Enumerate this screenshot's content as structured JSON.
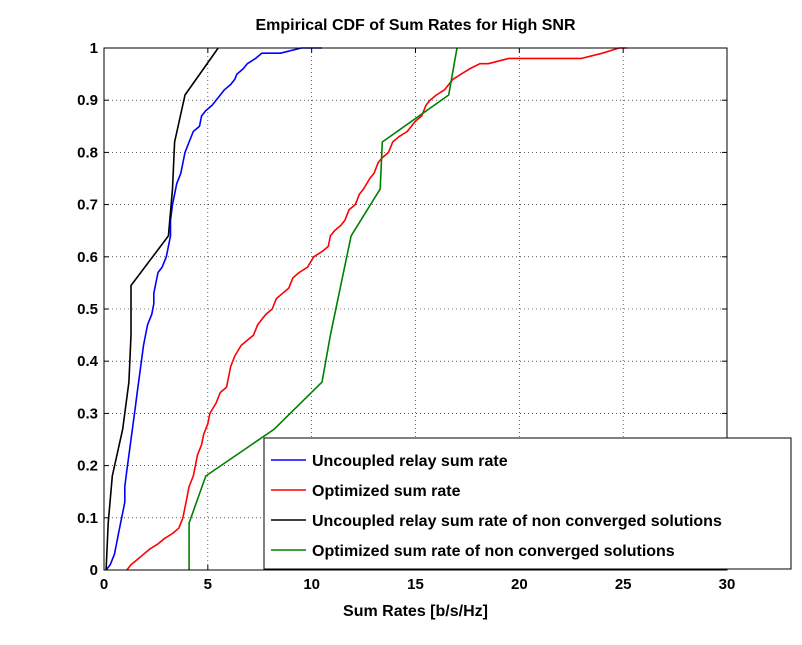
{
  "chart_data": {
    "type": "line",
    "title": "Empirical CDF of Sum Rates for High SNR",
    "xlabel": "Sum Rates [b/s/Hz]",
    "ylabel": "",
    "xlim": [
      0,
      30
    ],
    "ylim": [
      0,
      1
    ],
    "xticks": [
      0,
      5,
      10,
      15,
      20,
      25,
      30
    ],
    "xtick_labels": [
      "0",
      "5",
      "10",
      "15",
      "20",
      "25",
      "30"
    ],
    "yticks": [
      0,
      0.1,
      0.2,
      0.3,
      0.4,
      0.5,
      0.6,
      0.7,
      0.8,
      0.9,
      1
    ],
    "ytick_labels": [
      "0",
      "0.1",
      "0.2",
      "0.3",
      "0.4",
      "0.5",
      "0.6",
      "0.7",
      "0.8",
      "0.9",
      "1"
    ],
    "grid": true,
    "legend_position": "bottom-right",
    "series": [
      {
        "name": "Uncoupled relay sum rate",
        "color": "#0000ff",
        "points": [
          [
            0.1,
            0
          ],
          [
            0.3,
            0.01
          ],
          [
            0.4,
            0.02
          ],
          [
            0.5,
            0.03
          ],
          [
            0.6,
            0.05
          ],
          [
            0.7,
            0.07
          ],
          [
            0.8,
            0.09
          ],
          [
            0.9,
            0.11
          ],
          [
            1.0,
            0.13
          ],
          [
            1.0,
            0.16
          ],
          [
            1.1,
            0.19
          ],
          [
            1.2,
            0.22
          ],
          [
            1.3,
            0.25
          ],
          [
            1.4,
            0.28
          ],
          [
            1.5,
            0.31
          ],
          [
            1.6,
            0.34
          ],
          [
            1.7,
            0.37
          ],
          [
            1.8,
            0.4
          ],
          [
            1.9,
            0.43
          ],
          [
            2.0,
            0.45
          ],
          [
            2.1,
            0.47
          ],
          [
            2.3,
            0.49
          ],
          [
            2.4,
            0.51
          ],
          [
            2.4,
            0.53
          ],
          [
            2.5,
            0.55
          ],
          [
            2.6,
            0.57
          ],
          [
            2.8,
            0.58
          ],
          [
            3.0,
            0.6
          ],
          [
            3.1,
            0.62
          ],
          [
            3.2,
            0.64
          ],
          [
            3.2,
            0.67
          ],
          [
            3.3,
            0.7
          ],
          [
            3.4,
            0.72
          ],
          [
            3.5,
            0.74
          ],
          [
            3.7,
            0.76
          ],
          [
            3.8,
            0.78
          ],
          [
            3.9,
            0.8
          ],
          [
            4.1,
            0.82
          ],
          [
            4.3,
            0.84
          ],
          [
            4.6,
            0.85
          ],
          [
            4.7,
            0.87
          ],
          [
            4.9,
            0.88
          ],
          [
            5.2,
            0.89
          ],
          [
            5.4,
            0.9
          ],
          [
            5.6,
            0.91
          ],
          [
            5.8,
            0.92
          ],
          [
            6.1,
            0.93
          ],
          [
            6.3,
            0.94
          ],
          [
            6.4,
            0.95
          ],
          [
            6.7,
            0.96
          ],
          [
            6.9,
            0.97
          ],
          [
            7.3,
            0.98
          ],
          [
            7.6,
            0.99
          ],
          [
            8.5,
            0.99
          ],
          [
            9.5,
            1.0
          ],
          [
            10.5,
            1.0
          ]
        ]
      },
      {
        "name": "Optimized sum rate",
        "color": "#ff0000",
        "points": [
          [
            1.1,
            0
          ],
          [
            1.3,
            0.01
          ],
          [
            1.6,
            0.02
          ],
          [
            1.9,
            0.03
          ],
          [
            2.2,
            0.04
          ],
          [
            2.6,
            0.05
          ],
          [
            2.9,
            0.06
          ],
          [
            3.3,
            0.07
          ],
          [
            3.6,
            0.08
          ],
          [
            3.8,
            0.1
          ],
          [
            3.9,
            0.12
          ],
          [
            4.0,
            0.14
          ],
          [
            4.1,
            0.16
          ],
          [
            4.3,
            0.18
          ],
          [
            4.4,
            0.2
          ],
          [
            4.5,
            0.22
          ],
          [
            4.7,
            0.24
          ],
          [
            4.8,
            0.26
          ],
          [
            5.0,
            0.28
          ],
          [
            5.1,
            0.3
          ],
          [
            5.4,
            0.32
          ],
          [
            5.6,
            0.34
          ],
          [
            5.9,
            0.35
          ],
          [
            6.0,
            0.37
          ],
          [
            6.1,
            0.39
          ],
          [
            6.3,
            0.41
          ],
          [
            6.6,
            0.43
          ],
          [
            6.9,
            0.44
          ],
          [
            7.2,
            0.45
          ],
          [
            7.4,
            0.47
          ],
          [
            7.6,
            0.48
          ],
          [
            7.8,
            0.49
          ],
          [
            8.1,
            0.5
          ],
          [
            8.3,
            0.52
          ],
          [
            8.6,
            0.53
          ],
          [
            8.9,
            0.54
          ],
          [
            9.1,
            0.56
          ],
          [
            9.4,
            0.57
          ],
          [
            9.8,
            0.58
          ],
          [
            10.1,
            0.6
          ],
          [
            10.5,
            0.61
          ],
          [
            10.8,
            0.62
          ],
          [
            10.9,
            0.64
          ],
          [
            11.1,
            0.65
          ],
          [
            11.4,
            0.66
          ],
          [
            11.6,
            0.67
          ],
          [
            11.8,
            0.69
          ],
          [
            12.1,
            0.7
          ],
          [
            12.3,
            0.72
          ],
          [
            12.5,
            0.73
          ],
          [
            12.8,
            0.75
          ],
          [
            13.0,
            0.76
          ],
          [
            13.2,
            0.78
          ],
          [
            13.4,
            0.79
          ],
          [
            13.7,
            0.8
          ],
          [
            13.9,
            0.82
          ],
          [
            14.2,
            0.83
          ],
          [
            14.6,
            0.84
          ],
          [
            15.0,
            0.86
          ],
          [
            15.3,
            0.87
          ],
          [
            15.5,
            0.89
          ],
          [
            15.7,
            0.9
          ],
          [
            16.0,
            0.91
          ],
          [
            16.4,
            0.92
          ],
          [
            16.8,
            0.94
          ],
          [
            17.2,
            0.95
          ],
          [
            17.6,
            0.96
          ],
          [
            18.1,
            0.97
          ],
          [
            18.5,
            0.97
          ],
          [
            19.5,
            0.98
          ],
          [
            20.5,
            0.98
          ],
          [
            21.5,
            0.98
          ],
          [
            23.0,
            0.98
          ],
          [
            24.0,
            0.99
          ],
          [
            24.8,
            1.0
          ],
          [
            25.2,
            1.0
          ]
        ]
      },
      {
        "name": "Uncoupled relay sum rate of non converged solutions",
        "color": "#000000",
        "points": [
          [
            0.1,
            0
          ],
          [
            0.2,
            0.09
          ],
          [
            0.4,
            0.18
          ],
          [
            0.9,
            0.27
          ],
          [
            1.2,
            0.36
          ],
          [
            1.3,
            0.45
          ],
          [
            1.3,
            0.545
          ],
          [
            3.1,
            0.64
          ],
          [
            3.3,
            0.73
          ],
          [
            3.4,
            0.82
          ],
          [
            3.9,
            0.91
          ],
          [
            5.5,
            1.0
          ]
        ]
      },
      {
        "name": "Optimized sum rate of non converged solutions",
        "color": "#008000",
        "points": [
          [
            4.1,
            0
          ],
          [
            4.1,
            0.09
          ],
          [
            4.9,
            0.18
          ],
          [
            8.2,
            0.27
          ],
          [
            10.5,
            0.36
          ],
          [
            10.9,
            0.45
          ],
          [
            11.9,
            0.64
          ],
          [
            13.3,
            0.73
          ],
          [
            13.4,
            0.82
          ],
          [
            16.6,
            0.91
          ],
          [
            17.0,
            1.0
          ]
        ]
      }
    ]
  }
}
